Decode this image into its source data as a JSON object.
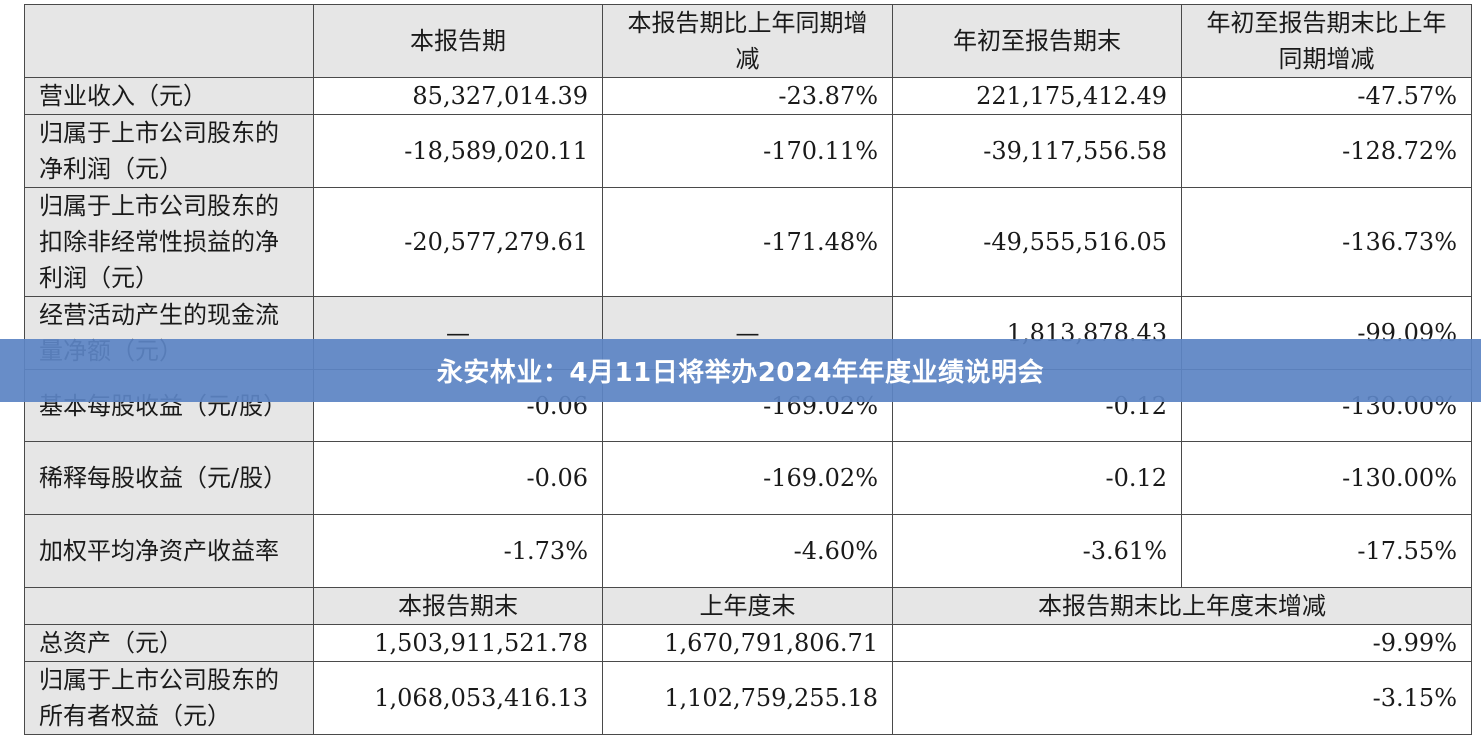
{
  "banner": {
    "title": "永安林业：4月11日将举办2024年年度业绩说明会"
  },
  "header1": {
    "col1": "本报告期",
    "col2": "本报告期比上年同期增减",
    "col3": "年初至报告期末",
    "col4": "年初至报告期末比上年同期增减"
  },
  "rows1": [
    {
      "label": "营业收入（元）",
      "v1": "85,327,014.39",
      "v2": "-23.87%",
      "v3": "221,175,412.49",
      "v4": "-47.57%"
    },
    {
      "label": "归属于上市公司股东的净利润（元）",
      "v1": "-18,589,020.11",
      "v2": "-170.11%",
      "v3": "-39,117,556.58",
      "v4": "-128.72%"
    },
    {
      "label": "归属于上市公司股东的扣除非经常性损益的净利润（元）",
      "v1": "-20,577,279.61",
      "v2": "-171.48%",
      "v3": "-49,555,516.05",
      "v4": "-136.73%"
    },
    {
      "label": "经营活动产生的现金流量净额（元）",
      "v1": "—",
      "v2": "—",
      "v3": "1,813,878.43",
      "v4": "-99.09%"
    },
    {
      "label": "基本每股收益（元/股）",
      "v1": "-0.06",
      "v2": "-169.02%",
      "v3": "-0.12",
      "v4": "-130.00%"
    },
    {
      "label": "稀释每股收益（元/股）",
      "v1": "-0.06",
      "v2": "-169.02%",
      "v3": "-0.12",
      "v4": "-130.00%"
    },
    {
      "label": "加权平均净资产收益率",
      "v1": "-1.73%",
      "v2": "-4.60%",
      "v3": "-3.61%",
      "v4": "-17.55%"
    }
  ],
  "header2": {
    "col1": "本报告期末",
    "col2": "上年度末",
    "col3": "本报告期末比上年度末增减"
  },
  "rows2": [
    {
      "label": "总资产（元）",
      "v1": "1,503,911,521.78",
      "v2": "1,670,791,806.71",
      "v3": "-9.99%"
    },
    {
      "label": "归属于上市公司股东的所有者权益（元）",
      "v1": "1,068,053,416.13",
      "v2": "1,102,759,255.18",
      "v3": "-3.15%"
    }
  ]
}
